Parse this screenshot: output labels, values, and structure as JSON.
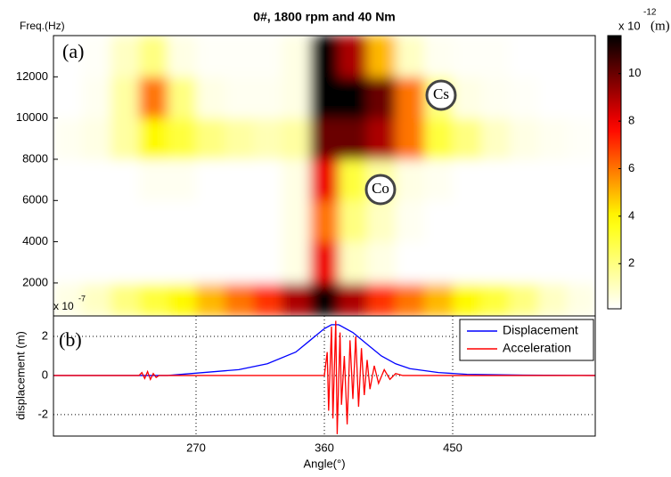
{
  "chart_data": [
    {
      "type": "heatmap",
      "title": "0#, 1800 rpm and 40 Nm",
      "ylabel": "Freq.(Hz)",
      "panel_label": "(a)",
      "xlim": [
        170,
        550
      ],
      "ylim": [
        400,
        14000
      ],
      "yticks": [
        2000,
        4000,
        6000,
        8000,
        10000,
        12000
      ],
      "xbins": [
        170,
        190,
        210,
        230,
        250,
        270,
        290,
        310,
        330,
        350,
        370,
        390,
        410,
        430,
        450,
        470,
        490,
        510,
        530,
        550
      ],
      "ybins": [
        400,
        2000,
        4000,
        6000,
        8000,
        10000,
        12000,
        14000
      ],
      "z": [
        [
          0.5,
          1,
          2,
          3,
          4,
          5,
          6,
          7,
          9,
          11.6,
          9,
          7,
          6,
          5,
          4,
          3,
          2,
          1,
          0.5
        ],
        [
          0,
          0,
          0,
          0,
          0,
          0,
          0,
          0,
          0.5,
          8,
          1,
          0.5,
          0,
          0,
          0,
          0,
          0,
          0,
          0
        ],
        [
          0,
          0,
          0,
          0,
          0,
          0,
          0,
          0,
          0.5,
          6,
          2,
          1,
          0.3,
          0,
          0,
          0,
          0,
          0,
          0
        ],
        [
          0,
          0,
          0,
          0.3,
          0.3,
          0,
          0,
          0,
          0.5,
          8,
          3,
          1.5,
          0.5,
          0.3,
          0,
          0,
          0,
          0,
          0
        ],
        [
          0.3,
          0.5,
          1.5,
          4,
          3,
          2,
          1.5,
          1.2,
          1.5,
          10,
          10,
          9,
          6,
          3,
          2,
          1,
          0.5,
          0.3,
          0.2
        ],
        [
          0,
          0.3,
          1.5,
          6,
          2,
          0.5,
          0.3,
          0.3,
          0.5,
          11.6,
          11.6,
          10,
          6,
          2,
          0.5,
          0.3,
          0.2,
          0,
          0
        ],
        [
          0,
          0.2,
          1,
          2,
          0.5,
          0.2,
          0.2,
          0.2,
          0.5,
          11.6,
          9,
          5,
          1,
          0.3,
          0.2,
          0.2,
          0.1,
          0,
          0
        ]
      ],
      "colorbar": {
        "zlim": [
          0.1,
          11.6
        ],
        "ticks": [
          2,
          4,
          6,
          8,
          10
        ],
        "label": "x 10",
        "exponent": "-12",
        "unit": "(m)"
      },
      "annotations": [
        "Cs",
        "Co"
      ]
    },
    {
      "type": "line",
      "panel_label": "(b)",
      "xlabel": "Angle(°)",
      "ylabel": "displacement (m)",
      "scale_label": "x 10",
      "scale_exponent": "-7",
      "xlim": [
        170,
        550
      ],
      "xticks": [
        270,
        360,
        450
      ],
      "ylim": [
        -3.1,
        3.05
      ],
      "yticks": [
        -2,
        0,
        2
      ],
      "grid": true,
      "legend": "upper right",
      "series": [
        {
          "name": "Displacement",
          "color": "#0000ff",
          "x": [
            170,
            250,
            300,
            320,
            340,
            350,
            360,
            365,
            370,
            380,
            390,
            400,
            410,
            420,
            440,
            460,
            500,
            550
          ],
          "values": [
            0,
            0,
            0.3,
            0.6,
            1.2,
            1.8,
            2.4,
            2.6,
            2.6,
            2.2,
            1.6,
            1.0,
            0.6,
            0.35,
            0.15,
            0.06,
            0.02,
            0
          ]
        },
        {
          "name": "Acceleration",
          "color": "#ff0000",
          "x": [
            170,
            230,
            232,
            234,
            236,
            238,
            240,
            242,
            244,
            360,
            362,
            363,
            365,
            366,
            368,
            369,
            371,
            372,
            374,
            376,
            378,
            380,
            382,
            384,
            386,
            388,
            390,
            392,
            395,
            398,
            402,
            406,
            410,
            415,
            550
          ],
          "values": [
            0,
            0,
            0.15,
            -0.15,
            0.2,
            -0.2,
            0.1,
            -0.1,
            0,
            0,
            1.2,
            -1.8,
            2.5,
            -2.2,
            2.8,
            -3.0,
            2.2,
            -1.5,
            1.0,
            -2.5,
            1.8,
            -1.2,
            2.0,
            -1.6,
            1.4,
            -1.0,
            0.8,
            -0.7,
            0.5,
            -0.4,
            0.3,
            -0.2,
            0.1,
            0,
            0
          ]
        }
      ]
    }
  ]
}
